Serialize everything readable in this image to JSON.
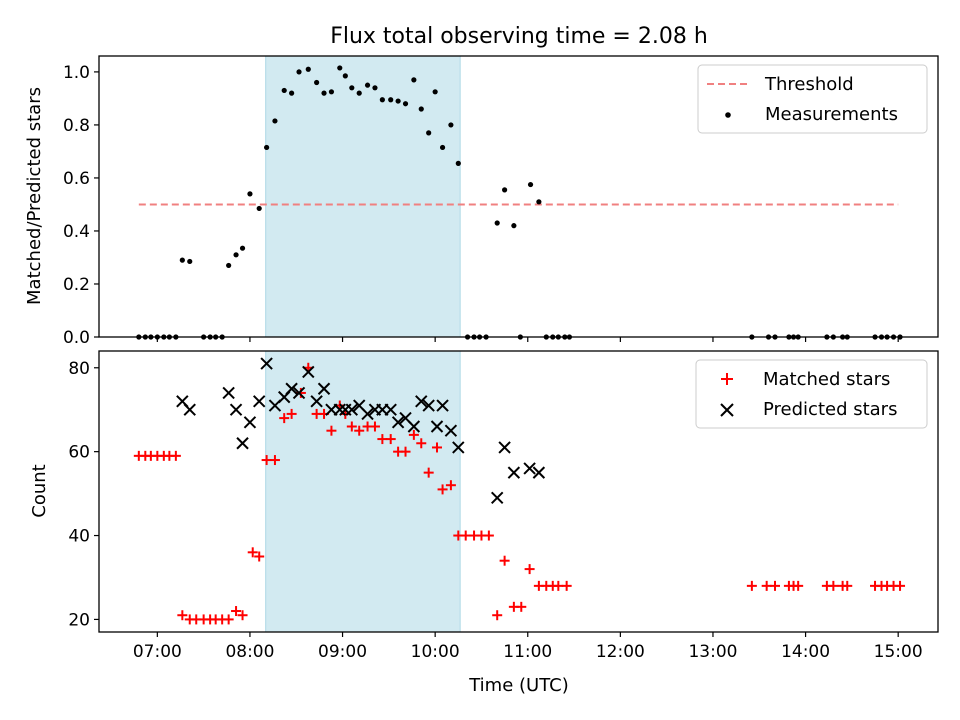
{
  "chart_data": {
    "title": "Flux total observing time = 2.08 h",
    "xlabel": "Time (UTC)",
    "x_unit": "hours UTC",
    "xlim": [
      6.37,
      15.43
    ],
    "xticks": [
      7,
      8,
      9,
      10,
      11,
      12,
      13,
      14,
      15
    ],
    "xtick_labels": [
      "07:00",
      "08:00",
      "09:00",
      "10:00",
      "11:00",
      "12:00",
      "13:00",
      "14:00",
      "15:00"
    ],
    "observing_window": {
      "start": 8.17,
      "end": 10.27,
      "color": "#add8e6"
    },
    "panels": [
      {
        "type": "scatter",
        "ylabel": "Matched/Predicted stars",
        "ylim": [
          0,
          1.06
        ],
        "yticks": [
          0.0,
          0.2,
          0.4,
          0.6,
          0.8,
          1.0
        ],
        "ytick_labels": [
          "0.0",
          "0.2",
          "0.4",
          "0.6",
          "0.8",
          "1.0"
        ],
        "legend_position": "upper right",
        "threshold": {
          "name": "Threshold",
          "y": 0.5,
          "x_range": [
            6.8,
            15.0
          ],
          "color": "#f08080"
        },
        "series": [
          {
            "name": "Measurements",
            "color": "#000000",
            "marker": "dot",
            "points": [
              [
                6.8,
                0.0
              ],
              [
                6.87,
                0.0
              ],
              [
                6.93,
                0.0
              ],
              [
                7.0,
                0.0
              ],
              [
                7.07,
                0.0
              ],
              [
                7.13,
                0.0
              ],
              [
                7.2,
                0.0
              ],
              [
                7.27,
                0.29
              ],
              [
                7.35,
                0.285
              ],
              [
                7.5,
                0.0
              ],
              [
                7.57,
                0.0
              ],
              [
                7.63,
                0.0
              ],
              [
                7.7,
                0.0
              ],
              [
                7.77,
                0.27
              ],
              [
                7.85,
                0.31
              ],
              [
                7.92,
                0.335
              ],
              [
                8.0,
                0.54
              ],
              [
                8.1,
                0.485
              ],
              [
                8.18,
                0.715
              ],
              [
                8.27,
                0.815
              ],
              [
                8.37,
                0.93
              ],
              [
                8.45,
                0.92
              ],
              [
                8.53,
                1.0
              ],
              [
                8.63,
                1.01
              ],
              [
                8.72,
                0.96
              ],
              [
                8.8,
                0.92
              ],
              [
                8.88,
                0.925
              ],
              [
                8.97,
                1.015
              ],
              [
                9.03,
                0.985
              ],
              [
                9.1,
                0.94
              ],
              [
                9.18,
                0.92
              ],
              [
                9.27,
                0.95
              ],
              [
                9.35,
                0.94
              ],
              [
                9.43,
                0.895
              ],
              [
                9.52,
                0.895
              ],
              [
                9.6,
                0.89
              ],
              [
                9.68,
                0.88
              ],
              [
                9.77,
                0.97
              ],
              [
                9.85,
                0.86
              ],
              [
                9.93,
                0.77
              ],
              [
                10.0,
                0.925
              ],
              [
                10.08,
                0.715
              ],
              [
                10.17,
                0.8
              ],
              [
                10.25,
                0.655
              ],
              [
                10.35,
                0.0
              ],
              [
                10.42,
                0.0
              ],
              [
                10.48,
                0.0
              ],
              [
                10.55,
                0.0
              ],
              [
                10.67,
                0.43
              ],
              [
                10.75,
                0.555
              ],
              [
                10.85,
                0.42
              ],
              [
                10.92,
                0.0
              ],
              [
                11.03,
                0.575
              ],
              [
                11.12,
                0.51
              ],
              [
                11.2,
                0.0
              ],
              [
                11.27,
                0.0
              ],
              [
                11.33,
                0.0
              ],
              [
                11.4,
                0.0
              ],
              [
                11.45,
                0.0
              ],
              [
                13.42,
                0.0
              ],
              [
                13.6,
                0.0
              ],
              [
                13.67,
                0.0
              ],
              [
                13.82,
                0.0
              ],
              [
                13.87,
                0.0
              ],
              [
                13.92,
                0.0
              ],
              [
                14.23,
                0.0
              ],
              [
                14.3,
                0.0
              ],
              [
                14.4,
                0.0
              ],
              [
                14.45,
                0.0
              ],
              [
                14.75,
                0.0
              ],
              [
                14.82,
                0.0
              ],
              [
                14.88,
                0.0
              ],
              [
                14.95,
                0.0
              ],
              [
                15.02,
                0.0
              ]
            ]
          }
        ]
      },
      {
        "type": "scatter",
        "ylabel": "Count",
        "ylim": [
          17,
          84
        ],
        "yticks": [
          20,
          40,
          60,
          80
        ],
        "ytick_labels": [
          "20",
          "40",
          "60",
          "80"
        ],
        "legend_position": "upper right",
        "series": [
          {
            "name": "Matched stars",
            "color": "#ff0000",
            "marker": "plus",
            "points": [
              [
                6.8,
                59
              ],
              [
                6.87,
                59
              ],
              [
                6.93,
                59
              ],
              [
                7.0,
                59
              ],
              [
                7.07,
                59
              ],
              [
                7.13,
                59
              ],
              [
                7.2,
                59
              ],
              [
                7.27,
                21
              ],
              [
                7.35,
                20
              ],
              [
                7.42,
                20
              ],
              [
                7.5,
                20
              ],
              [
                7.57,
                20
              ],
              [
                7.63,
                20
              ],
              [
                7.7,
                20
              ],
              [
                7.77,
                20
              ],
              [
                7.85,
                22
              ],
              [
                7.92,
                21
              ],
              [
                8.03,
                36
              ],
              [
                8.1,
                35
              ],
              [
                8.18,
                58
              ],
              [
                8.27,
                58
              ],
              [
                8.37,
                68
              ],
              [
                8.45,
                69
              ],
              [
                8.55,
                74
              ],
              [
                8.63,
                80
              ],
              [
                8.72,
                69
              ],
              [
                8.8,
                69
              ],
              [
                8.88,
                65
              ],
              [
                8.97,
                71
              ],
              [
                9.03,
                69
              ],
              [
                9.1,
                66
              ],
              [
                9.18,
                65
              ],
              [
                9.27,
                66
              ],
              [
                9.35,
                66
              ],
              [
                9.43,
                63
              ],
              [
                9.52,
                63
              ],
              [
                9.6,
                60
              ],
              [
                9.68,
                60
              ],
              [
                9.77,
                64
              ],
              [
                9.85,
                62
              ],
              [
                9.93,
                55
              ],
              [
                10.02,
                61
              ],
              [
                10.08,
                51
              ],
              [
                10.17,
                52
              ],
              [
                10.25,
                40
              ],
              [
                10.33,
                40
              ],
              [
                10.42,
                40
              ],
              [
                10.5,
                40
              ],
              [
                10.58,
                40
              ],
              [
                10.67,
                21
              ],
              [
                10.75,
                34
              ],
              [
                10.85,
                23
              ],
              [
                10.93,
                23
              ],
              [
                11.02,
                32
              ],
              [
                11.12,
                28
              ],
              [
                11.2,
                28
              ],
              [
                11.27,
                28
              ],
              [
                11.33,
                28
              ],
              [
                11.42,
                28
              ],
              [
                13.42,
                28
              ],
              [
                13.58,
                28
              ],
              [
                13.67,
                28
              ],
              [
                13.82,
                28
              ],
              [
                13.87,
                28
              ],
              [
                13.92,
                28
              ],
              [
                14.23,
                28
              ],
              [
                14.3,
                28
              ],
              [
                14.4,
                28
              ],
              [
                14.45,
                28
              ],
              [
                14.75,
                28
              ],
              [
                14.82,
                28
              ],
              [
                14.88,
                28
              ],
              [
                14.95,
                28
              ],
              [
                15.02,
                28
              ]
            ]
          },
          {
            "name": "Predicted stars",
            "color": "#000000",
            "marker": "x",
            "points": [
              [
                7.27,
                72
              ],
              [
                7.35,
                70
              ],
              [
                7.77,
                74
              ],
              [
                7.85,
                70
              ],
              [
                7.92,
                62
              ],
              [
                8.0,
                67
              ],
              [
                8.1,
                72
              ],
              [
                8.18,
                81
              ],
              [
                8.27,
                71
              ],
              [
                8.37,
                73
              ],
              [
                8.45,
                75
              ],
              [
                8.53,
                74
              ],
              [
                8.63,
                79
              ],
              [
                8.72,
                72
              ],
              [
                8.8,
                75
              ],
              [
                8.88,
                70
              ],
              [
                8.97,
                70
              ],
              [
                9.03,
                70
              ],
              [
                9.1,
                70
              ],
              [
                9.18,
                71
              ],
              [
                9.27,
                69
              ],
              [
                9.35,
                70
              ],
              [
                9.43,
                70
              ],
              [
                9.52,
                70
              ],
              [
                9.6,
                67
              ],
              [
                9.68,
                68
              ],
              [
                9.77,
                66
              ],
              [
                9.85,
                72
              ],
              [
                9.93,
                71
              ],
              [
                10.02,
                66
              ],
              [
                10.08,
                71
              ],
              [
                10.17,
                65
              ],
              [
                10.25,
                61
              ],
              [
                10.67,
                49
              ],
              [
                10.75,
                61
              ],
              [
                10.85,
                55
              ],
              [
                11.02,
                56
              ],
              [
                11.12,
                55
              ]
            ]
          }
        ]
      }
    ]
  }
}
